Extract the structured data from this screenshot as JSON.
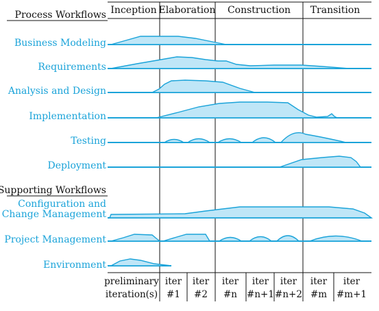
{
  "phases": [
    "Inception",
    "Elaboration",
    "Construction",
    "Transition"
  ],
  "process_header": "Process Workflows",
  "supporting_header": "Supporting Workflows",
  "workflows": [
    "Business Modeling",
    "Requirements",
    "Analysis and Design",
    "Implementation",
    "Testing",
    "Deployment",
    "Configuration and",
    "Change Management",
    "Project Management",
    "Environment"
  ],
  "iterations": [
    {
      "line1": "preliminary",
      "line2": "iteration(s)"
    },
    {
      "line1": "iter",
      "line2": "#1"
    },
    {
      "line1": "iter",
      "line2": "#2"
    },
    {
      "line1": "iter",
      "line2": "#n"
    },
    {
      "line1": "iter",
      "line2": "#n+1"
    },
    {
      "line1": "iter",
      "line2": "#n+2"
    },
    {
      "line1": "iter",
      "line2": "#m"
    },
    {
      "line1": "iter",
      "line2": "#m+1"
    }
  ],
  "colors": {
    "accent": "#1aa3d9",
    "fill": "#bfe6f7",
    "text": "#111111"
  }
}
